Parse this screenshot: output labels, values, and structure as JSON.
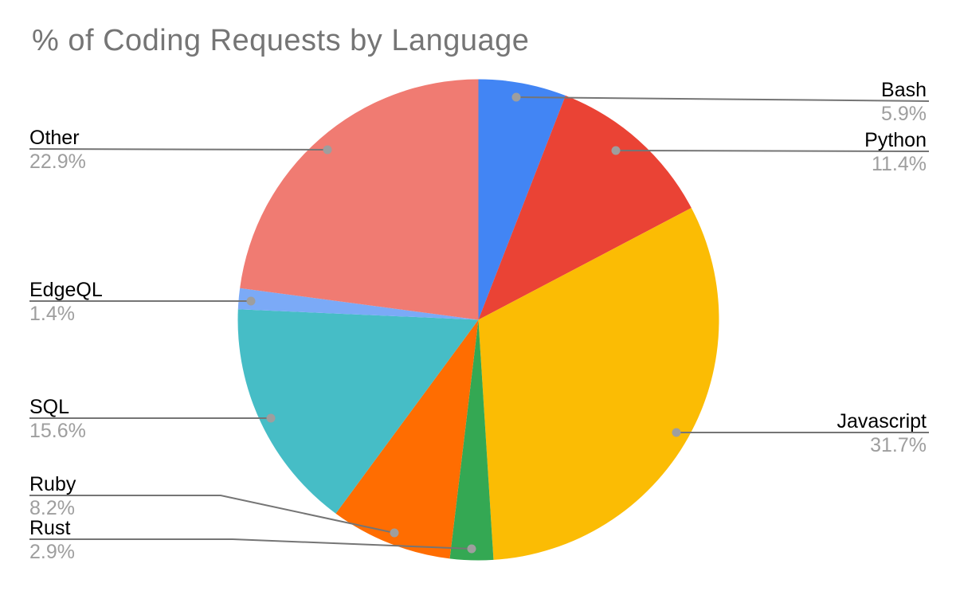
{
  "chart_data": {
    "type": "pie",
    "title": "% of Coding Requests by Language",
    "title_color": "#757575",
    "background": "#ffffff",
    "direction": "clockwise",
    "start_angle_deg": 0,
    "legend_position": "none",
    "label_style": {
      "name_color": "#000000",
      "pct_color": "#9e9e9e",
      "line_color": "#757575",
      "dot_color": "#9e9e9e"
    },
    "slices": [
      {
        "label": "Bash",
        "value": 5.9,
        "pct_label": "5.9%",
        "color": "#4285F4"
      },
      {
        "label": "Python",
        "value": 11.4,
        "pct_label": "11.4%",
        "color": "#EA4335"
      },
      {
        "label": "Javascript",
        "value": 31.7,
        "pct_label": "31.7%",
        "color": "#FBBC04"
      },
      {
        "label": "Rust",
        "value": 2.9,
        "pct_label": "2.9%",
        "color": "#34A853"
      },
      {
        "label": "Ruby",
        "value": 8.2,
        "pct_label": "8.2%",
        "color": "#FF6D01"
      },
      {
        "label": "SQL",
        "value": 15.6,
        "pct_label": "15.6%",
        "color": "#46BDC6"
      },
      {
        "label": "EdgeQL",
        "value": 1.4,
        "pct_label": "1.4%",
        "color": "#7BAAF7"
      },
      {
        "label": "Other",
        "value": 22.9,
        "pct_label": "22.9%",
        "color": "#F07B72"
      }
    ]
  }
}
